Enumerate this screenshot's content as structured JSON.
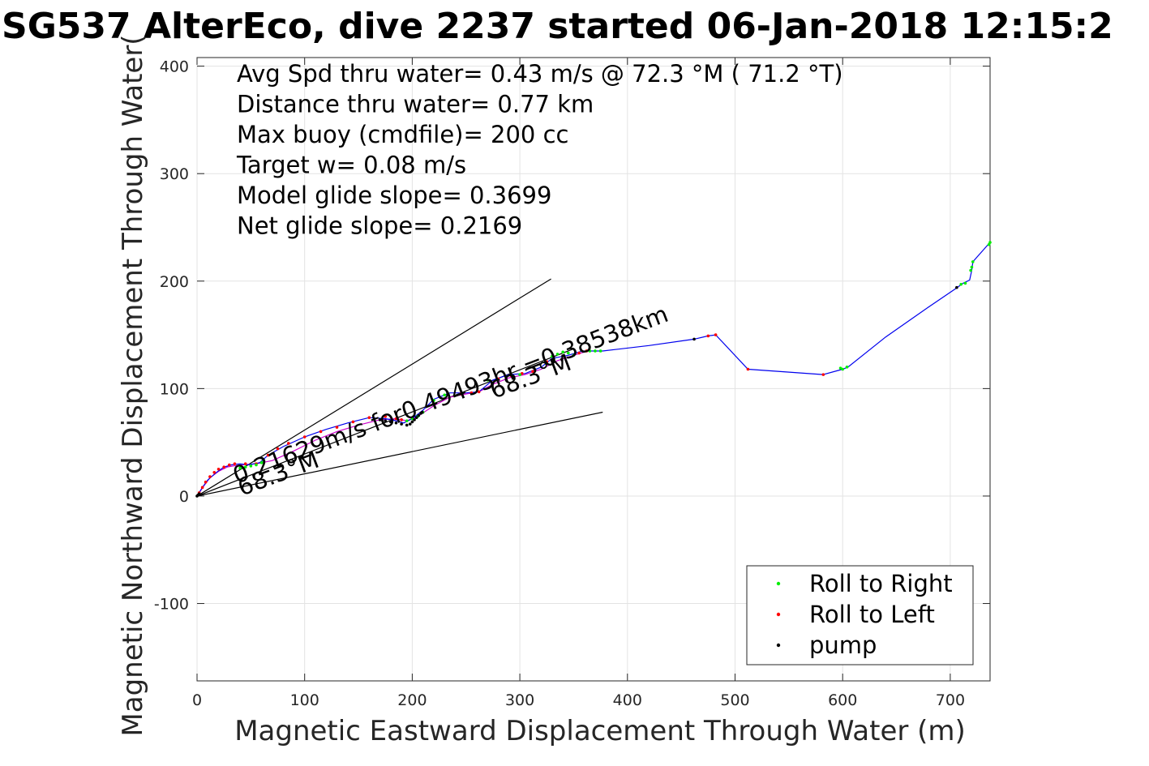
{
  "chart_data": {
    "type": "line",
    "title": "SG537 AlterEco, dive 2237 started 06-Jan-2018 12:15:2",
    "xlabel": "Magnetic Eastward Displacement Through Water (m)",
    "ylabel": "Magnetic Northward Displacement Through Water(",
    "xlim": [
      0,
      737
    ],
    "ylim": [
      -172,
      408
    ],
    "x_ticks": [
      0,
      100,
      200,
      300,
      400,
      500,
      600,
      700
    ],
    "x_tick_labels": [
      "0",
      "100",
      "200",
      "300",
      "400",
      "500",
      "600",
      "700"
    ],
    "y_ticks": [
      -100,
      0,
      100,
      200,
      300,
      400
    ],
    "y_tick_labels": [
      "-100",
      "0",
      "100",
      "200",
      "300",
      "400"
    ],
    "grid": true,
    "legend_position": "bottom-right",
    "legend": [
      {
        "label": "Roll to Right",
        "color": "#00ee00"
      },
      {
        "label": "Roll to Left",
        "color": "#ff0000"
      },
      {
        "label": "pump",
        "color": "#000000"
      }
    ],
    "stats_lines": [
      "Avg Spd thru water=  0.43 m/s @  72.3 °M ( 71.2 °T)",
      "Distance thru water=  0.77 km",
      "Max buoy (cmdfile)= 200 cc",
      "Target w= 0.08 m/s",
      "Model glide slope= 0.3699",
      "Net glide slope= 0.2169"
    ],
    "annotations": {
      "current_text": "0.21629m/s for0.49493hr =0.38538km",
      "heading_text_1": "68.3°M",
      "heading_text_2": "68.3°M"
    },
    "colors": {
      "track": "#0000ee",
      "model_track": "#cc00cc",
      "roll_right": "#00ee00",
      "roll_left": "#ff0000",
      "pump": "#000000",
      "guide_lines": "#000000"
    },
    "guide_lines": [
      {
        "x": [
          0,
          329
        ],
        "y": [
          0,
          202
        ]
      },
      {
        "x": [
          0,
          377
        ],
        "y": [
          0,
          78
        ]
      },
      {
        "x": [
          0,
          350
        ],
        "y": [
          0,
          137
        ]
      }
    ],
    "series": [
      {
        "x": [
          0,
          5,
          10,
          18,
          25,
          32,
          40,
          48,
          58,
          66,
          80,
          100,
          120,
          140,
          160,
          175,
          185,
          192,
          200,
          210,
          220,
          235,
          250,
          262,
          275,
          290,
          305,
          320,
          330,
          345,
          358,
          368,
          377,
          420,
          462,
          475,
          482,
          512,
          582,
          600,
          605,
          640,
          680,
          705,
          712,
          718,
          720,
          721,
          737
        ],
        "y": [
          0,
          8,
          15,
          22,
          27,
          29,
          30,
          29,
          31,
          38,
          46,
          55,
          62,
          68,
          73,
          72,
          70,
          68,
          72,
          80,
          90,
          96,
          96,
          97,
          108,
          113,
          114,
          120,
          128,
          131,
          135,
          135,
          135,
          140,
          146,
          149,
          150,
          118,
          113,
          118,
          120,
          148,
          176,
          193,
          198,
          201,
          210,
          218,
          236
        ]
      },
      {
        "x": [
          0,
          6,
          12,
          20,
          28,
          34,
          42,
          55,
          70,
          90,
          110,
          130,
          150,
          170,
          185,
          195,
          205,
          220,
          235,
          250,
          262,
          275,
          290,
          305,
          320,
          335,
          350,
          360
        ],
        "y": [
          0,
          9,
          17,
          23,
          27,
          28,
          29,
          30,
          33,
          42,
          52,
          60,
          66,
          71,
          72,
          70,
          74,
          84,
          92,
          95,
          97,
          104,
          110,
          113,
          118,
          126,
          131,
          134
        ]
      }
    ],
    "roll_right_points": {
      "x": [
        40,
        45,
        50,
        55,
        60,
        62,
        195,
        200,
        205,
        210,
        220,
        230,
        270,
        300,
        330,
        335,
        340,
        345,
        350,
        365,
        370,
        375,
        598,
        600,
        604,
        710,
        714,
        719,
        720,
        721,
        736,
        737
      ],
      "y": [
        26,
        27,
        28,
        29,
        31,
        33,
        70,
        72,
        74,
        78,
        89,
        94,
        108,
        113,
        130,
        132,
        134,
        133,
        131,
        135,
        135,
        135,
        119,
        118,
        120,
        197,
        198,
        210,
        213,
        218,
        234,
        236
      ]
    },
    "roll_left_points": {
      "x": [
        2,
        5,
        8,
        12,
        16,
        20,
        25,
        30,
        35,
        45,
        55,
        66,
        75,
        85,
        100,
        115,
        130,
        145,
        160,
        175,
        185,
        190,
        245,
        255,
        262,
        280,
        292,
        302,
        312,
        325,
        355,
        362,
        475,
        482,
        512,
        582
      ],
      "y": [
        3,
        8,
        13,
        18,
        22,
        25,
        27,
        29,
        30,
        30,
        30,
        38,
        44,
        49,
        55,
        60,
        64,
        69,
        73,
        74,
        72,
        71,
        95,
        96,
        97,
        109,
        112,
        114,
        116,
        125,
        133,
        135,
        149,
        150,
        118,
        113
      ]
    },
    "pump_points": {
      "x": [
        0,
        1,
        2,
        170,
        175,
        180,
        185,
        190,
        195,
        198,
        200,
        202,
        204,
        206,
        208,
        462,
        706
      ],
      "y": [
        0,
        1,
        2,
        71,
        70,
        69,
        68,
        67,
        66,
        67,
        69,
        71,
        73,
        75,
        77,
        146,
        194
      ]
    }
  }
}
